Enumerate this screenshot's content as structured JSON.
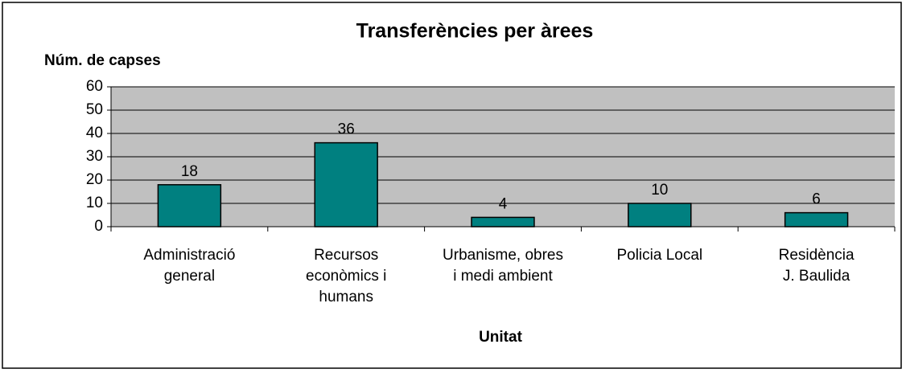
{
  "chart_data": {
    "type": "bar",
    "title": "Transferències per àrees",
    "y_label": "Núm. de capses",
    "x_label": "Unitat",
    "categories": [
      "Administració\ngeneral",
      "Recursos\neconòmics i\nhumans",
      "Urbanisme, obres\ni medi ambient",
      "Policia Local",
      "Residència\nJ. Baulida"
    ],
    "values": [
      18,
      36,
      4,
      10,
      6
    ],
    "color": "#008080",
    "ylim": [
      0,
      60
    ],
    "yticks": [
      0,
      10,
      20,
      30,
      40,
      50,
      60
    ],
    "grid": true
  }
}
